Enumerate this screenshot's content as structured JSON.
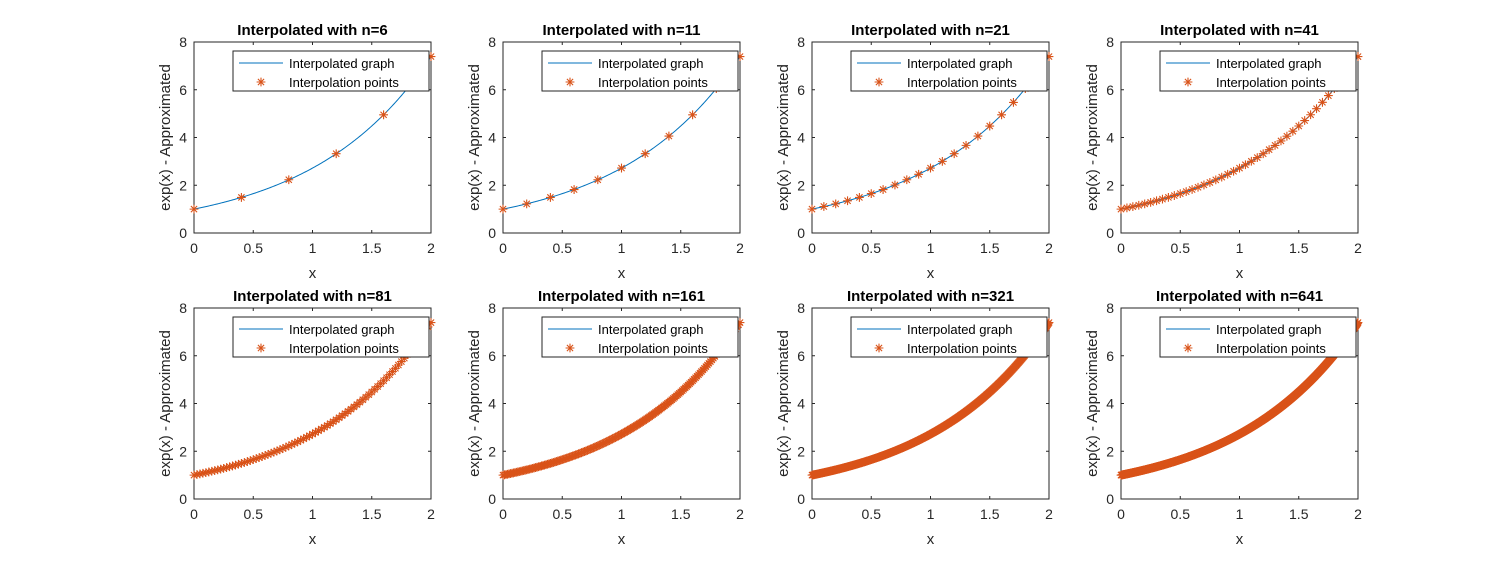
{
  "colors": {
    "line": "#0072bd",
    "marker": "#d95319",
    "axis": "#262626",
    "background": "#ffffff"
  },
  "chart_data": [
    {
      "type": "line",
      "n": 6,
      "title": "Interpolated with n=6",
      "xlabel": "x",
      "ylabel": "exp(x) - Approximated",
      "xlim": [
        0,
        2
      ],
      "ylim": [
        0,
        8
      ],
      "xticks": [
        "0",
        "0.5",
        "1",
        "1.5",
        "2"
      ],
      "yticks": [
        "0",
        "2",
        "4",
        "6",
        "8"
      ],
      "grid": false,
      "legend_position": "top-right",
      "series": [
        {
          "name": "Interpolated graph",
          "kind": "line",
          "function": "exp(x)"
        },
        {
          "name": "Interpolation points",
          "kind": "marker",
          "marker": "*",
          "x": [
            0,
            0.4,
            0.8,
            1.2,
            1.6,
            2.0
          ],
          "y": [
            1.0,
            1.49,
            2.23,
            3.32,
            4.95,
            7.39
          ]
        }
      ]
    },
    {
      "type": "line",
      "n": 11,
      "title": "Interpolated with n=11",
      "xlabel": "x",
      "ylabel": "exp(x) - Approximated",
      "xlim": [
        0,
        2
      ],
      "ylim": [
        0,
        8
      ],
      "xticks": [
        "0",
        "0.5",
        "1",
        "1.5",
        "2"
      ],
      "yticks": [
        "0",
        "2",
        "4",
        "6",
        "8"
      ],
      "grid": false,
      "legend_position": "top-right",
      "series": [
        {
          "name": "Interpolated graph",
          "kind": "line",
          "function": "exp(x)"
        },
        {
          "name": "Interpolation points",
          "kind": "marker",
          "marker": "*",
          "x": [
            0,
            0.2,
            0.4,
            0.6,
            0.8,
            1.0,
            1.2,
            1.4,
            1.6,
            1.8,
            2.0
          ],
          "y": [
            1.0,
            1.22,
            1.49,
            1.82,
            2.23,
            2.72,
            3.32,
            4.06,
            4.95,
            6.05,
            7.39
          ]
        }
      ]
    },
    {
      "type": "line",
      "n": 21,
      "title": "Interpolated with n=21",
      "xlabel": "x",
      "ylabel": "exp(x) - Approximated",
      "xlim": [
        0,
        2
      ],
      "ylim": [
        0,
        8
      ],
      "xticks": [
        "0",
        "0.5",
        "1",
        "1.5",
        "2"
      ],
      "yticks": [
        "0",
        "2",
        "4",
        "6",
        "8"
      ],
      "grid": false,
      "legend_position": "top-right",
      "series": [
        {
          "name": "Interpolated graph",
          "kind": "line",
          "function": "exp(x)"
        },
        {
          "name": "Interpolation points",
          "kind": "marker",
          "marker": "*",
          "x": [
            0,
            0.1,
            0.2,
            0.3,
            0.4,
            0.5,
            0.6,
            0.7,
            0.8,
            0.9,
            1.0,
            1.1,
            1.2,
            1.3,
            1.4,
            1.5,
            1.6,
            1.7,
            1.8,
            1.9,
            2.0
          ],
          "y": [
            1.0,
            1.11,
            1.22,
            1.35,
            1.49,
            1.65,
            1.82,
            2.01,
            2.23,
            2.46,
            2.72,
            3.0,
            3.32,
            3.67,
            4.06,
            4.48,
            4.95,
            5.47,
            6.05,
            6.69,
            7.39
          ]
        }
      ]
    },
    {
      "type": "line",
      "n": 41,
      "title": "Interpolated with n=41",
      "xlabel": "x",
      "ylabel": "exp(x) - Approximated",
      "xlim": [
        0,
        2
      ],
      "ylim": [
        0,
        8
      ],
      "xticks": [
        "0",
        "0.5",
        "1",
        "1.5",
        "2"
      ],
      "yticks": [
        "0",
        "2",
        "4",
        "6",
        "8"
      ],
      "grid": false,
      "legend_position": "top-right",
      "series": [
        {
          "name": "Interpolated graph",
          "kind": "line",
          "function": "exp(x)"
        },
        {
          "name": "Interpolation points",
          "kind": "marker",
          "marker": "*",
          "function": "exp(x)",
          "count": 41,
          "x_range": [
            0,
            2
          ]
        }
      ]
    },
    {
      "type": "line",
      "n": 81,
      "title": "Interpolated with n=81",
      "xlabel": "x",
      "ylabel": "exp(x) - Approximated",
      "xlim": [
        0,
        2
      ],
      "ylim": [
        0,
        8
      ],
      "xticks": [
        "0",
        "0.5",
        "1",
        "1.5",
        "2"
      ],
      "yticks": [
        "0",
        "2",
        "4",
        "6",
        "8"
      ],
      "grid": false,
      "legend_position": "top-right",
      "series": [
        {
          "name": "Interpolated graph",
          "kind": "line",
          "function": "exp(x)"
        },
        {
          "name": "Interpolation points",
          "kind": "marker",
          "marker": "*",
          "function": "exp(x)",
          "count": 81,
          "x_range": [
            0,
            2
          ]
        }
      ]
    },
    {
      "type": "line",
      "n": 161,
      "title": "Interpolated with n=161",
      "xlabel": "x",
      "ylabel": "exp(x) - Approximated",
      "xlim": [
        0,
        2
      ],
      "ylim": [
        0,
        8
      ],
      "xticks": [
        "0",
        "0.5",
        "1",
        "1.5",
        "2"
      ],
      "yticks": [
        "0",
        "2",
        "4",
        "6",
        "8"
      ],
      "grid": false,
      "legend_position": "top-right",
      "series": [
        {
          "name": "Interpolated graph",
          "kind": "line",
          "function": "exp(x)"
        },
        {
          "name": "Interpolation points",
          "kind": "marker",
          "marker": "*",
          "function": "exp(x)",
          "count": 161,
          "x_range": [
            0,
            2
          ]
        }
      ]
    },
    {
      "type": "line",
      "n": 321,
      "title": "Interpolated with n=321",
      "xlabel": "x",
      "ylabel": "exp(x) - Approximated",
      "xlim": [
        0,
        2
      ],
      "ylim": [
        0,
        8
      ],
      "xticks": [
        "0",
        "0.5",
        "1",
        "1.5",
        "2"
      ],
      "yticks": [
        "0",
        "2",
        "4",
        "6",
        "8"
      ],
      "grid": false,
      "legend_position": "top-right",
      "series": [
        {
          "name": "Interpolated graph",
          "kind": "line",
          "function": "exp(x)"
        },
        {
          "name": "Interpolation points",
          "kind": "marker",
          "marker": "*",
          "function": "exp(x)",
          "count": 321,
          "x_range": [
            0,
            2
          ]
        }
      ]
    },
    {
      "type": "line",
      "n": 641,
      "title": "Interpolated with n=641",
      "xlabel": "x",
      "ylabel": "exp(x) - Approximated",
      "xlim": [
        0,
        2
      ],
      "ylim": [
        0,
        8
      ],
      "xticks": [
        "0",
        "0.5",
        "1",
        "1.5",
        "2"
      ],
      "yticks": [
        "0",
        "2",
        "4",
        "6",
        "8"
      ],
      "grid": false,
      "legend_position": "top-right",
      "series": [
        {
          "name": "Interpolated graph",
          "kind": "line",
          "function": "exp(x)"
        },
        {
          "name": "Interpolation points",
          "kind": "marker",
          "marker": "*",
          "function": "exp(x)",
          "count": 641,
          "x_range": [
            0,
            2
          ]
        }
      ]
    }
  ]
}
